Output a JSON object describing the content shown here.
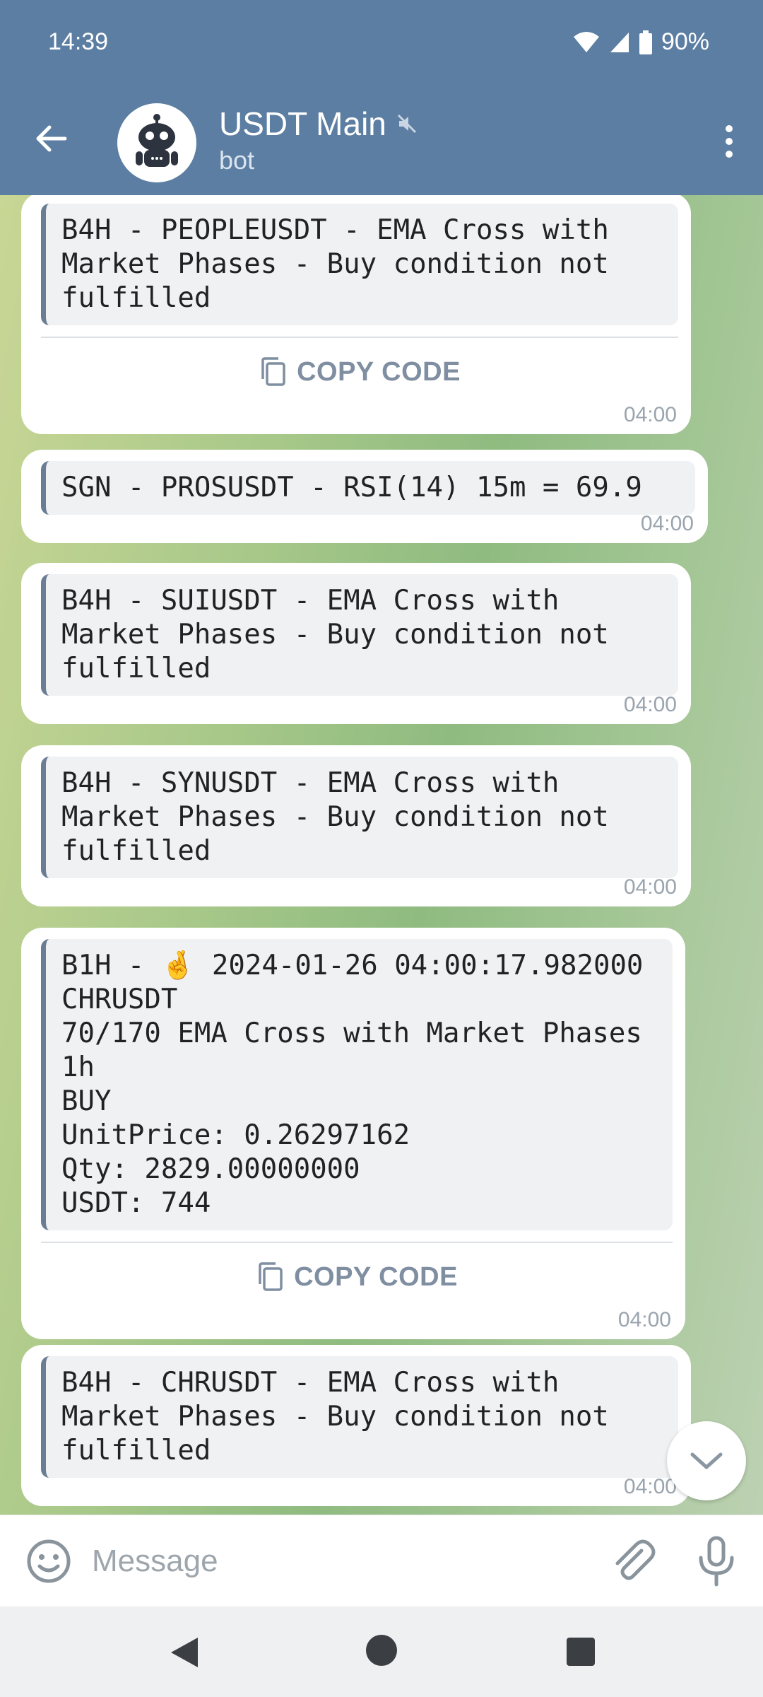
{
  "status": {
    "time": "14:39",
    "battery": "90%"
  },
  "header": {
    "title": "USDT Main",
    "subtitle": "bot"
  },
  "messages": [
    {
      "code": "B4H - PEOPLEUSDT - EMA Cross with\nMarket Phases - Buy condition not\nfulfilled",
      "copy_label": "COPY CODE",
      "time": "04:00"
    },
    {
      "code": "SGN - PROSUSDT - RSI(14) 15m = 69.9",
      "time": "04:00"
    },
    {
      "code": "B4H - SUIUSDT - EMA Cross with\nMarket Phases - Buy condition not\nfulfilled",
      "time": "04:00"
    },
    {
      "code": "B4H - SYNUSDT - EMA Cross with\nMarket Phases - Buy condition not\nfulfilled",
      "time": "04:00"
    },
    {
      "code": "B1H - 🤞 2024-01-26 04:00:17.982000\nCHRUSDT\n70/170 EMA Cross with Market Phases\n1h\nBUY\nUnitPrice: 0.26297162\nQty: 2829.00000000\nUSDT: 744",
      "copy_label": "COPY CODE",
      "time": "04:00"
    },
    {
      "code": "B4H - CHRUSDT - EMA Cross with\nMarket Phases - Buy condition not\nfulfilled",
      "time": "04:00"
    }
  ],
  "composer": {
    "placeholder": "Message"
  },
  "icons": {
    "back": "arrow-left-icon",
    "menu": "more-vertical-icon",
    "mute": "muted-speaker-icon",
    "emoji": "smile-icon",
    "attach": "paperclip-icon",
    "mic": "microphone-icon",
    "copy": "copy-icon",
    "scroll": "chevron-down-icon"
  },
  "colors": {
    "header": "#5b7ea2",
    "code_border": "#6b7d94",
    "copy_text": "#7f8ea0"
  }
}
